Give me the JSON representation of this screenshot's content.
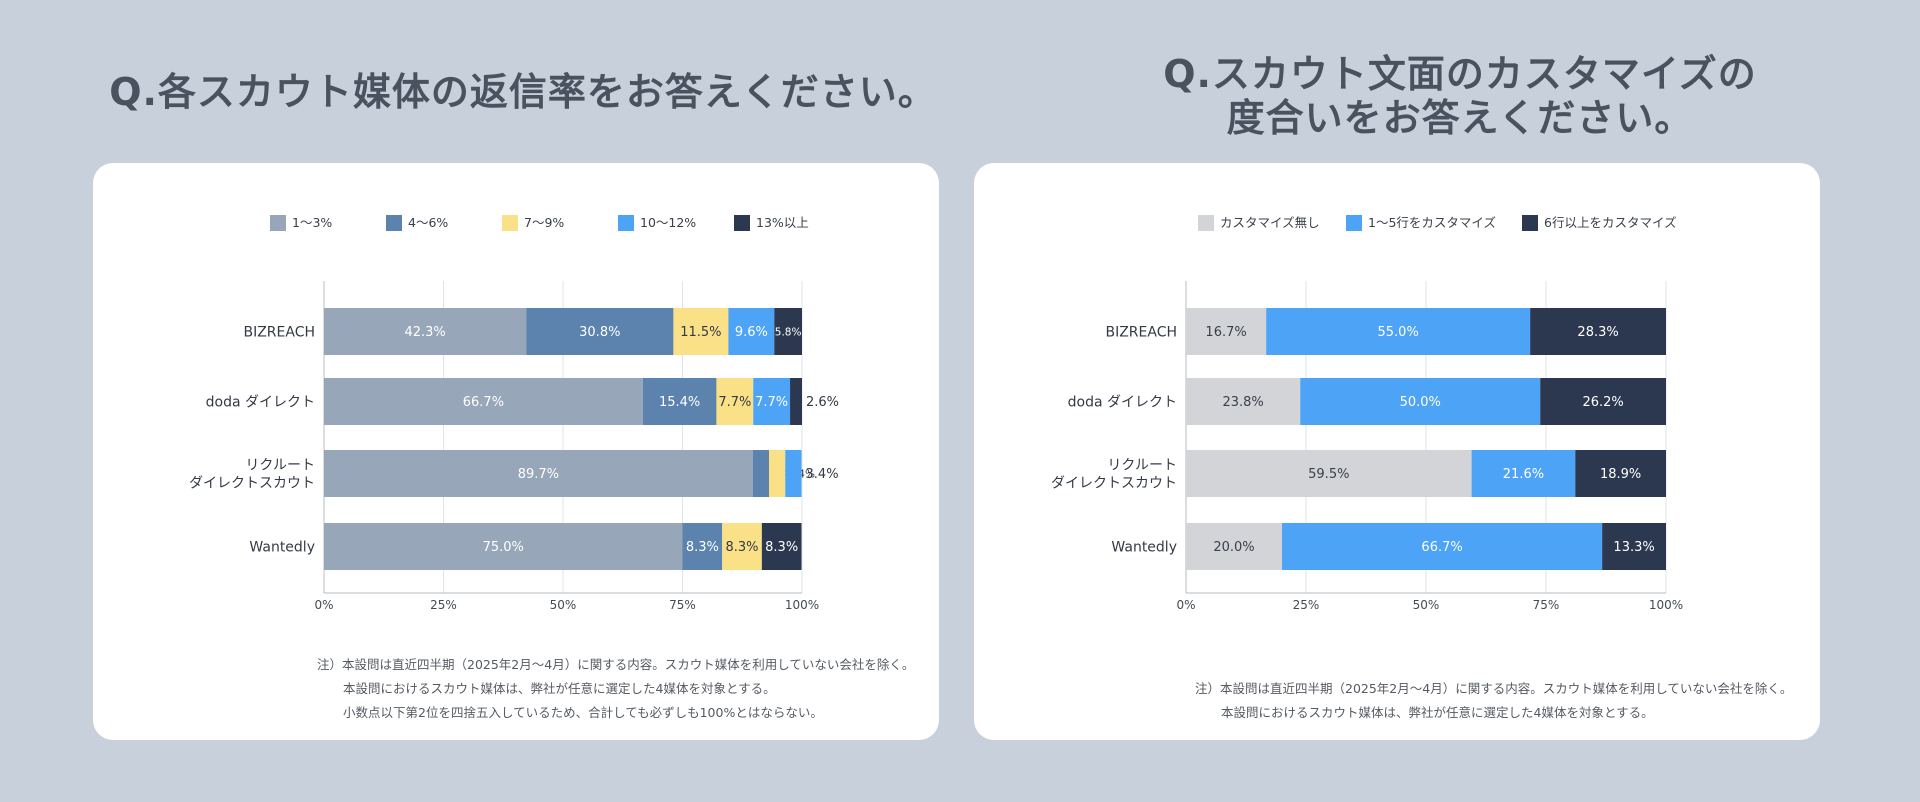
{
  "left": {
    "title": "Q.各スカウト媒体の返信率をお答えください。",
    "chart_data": {
      "type": "bar",
      "orientation": "horizontal",
      "stacked": true,
      "title": "Q.各スカウト媒体の返信率をお答えください。",
      "categories": [
        [
          "BIZREACH"
        ],
        [
          "doda ダイレクト"
        ],
        [
          "リクルート",
          "ダイレクトスカウト"
        ],
        [
          "Wantedly"
        ]
      ],
      "series": [
        {
          "name": "1〜3%",
          "color": "#97a6b8",
          "label_color": "#ffffff",
          "values": [
            42.3,
            66.7,
            89.7,
            75.0
          ]
        },
        {
          "name": "4〜6%",
          "color": "#5b83ae",
          "label_color": "#ffffff",
          "values": [
            30.8,
            15.4,
            3.4,
            8.3
          ]
        },
        {
          "name": "7〜9%",
          "color": "#fae187",
          "label_color": "#333a45",
          "values": [
            11.5,
            7.7,
            3.4,
            8.3
          ]
        },
        {
          "name": "10〜12%",
          "color": "#4da3f5",
          "label_color": "#ffffff",
          "values": [
            9.6,
            7.7,
            3.4,
            0
          ]
        },
        {
          "name": "13%以上",
          "color": "#2c3850",
          "label_color": "#ffffff",
          "values": [
            5.8,
            2.6,
            0,
            8.3
          ]
        }
      ],
      "value_labels": [
        [
          "42.3%",
          "30.8%",
          "11.5%",
          "9.6%",
          "5.8%"
        ],
        [
          "66.7%",
          "15.4%",
          "7.7%",
          "7.7%",
          "2.6%"
        ],
        [
          "89.7%",
          "3.4%",
          "3.4%",
          "3.4%",
          ""
        ],
        [
          "75.0%",
          "8.3%",
          "8.3%",
          "",
          "8.3%"
        ]
      ],
      "xlim": [
        0,
        100
      ],
      "x_ticks": [
        "0%",
        "25%",
        "50%",
        "75%",
        "100%"
      ],
      "legend": "top",
      "grid": true
    },
    "notes": [
      "注）本設問は直近四半期（2025年2月〜4月）に関する内容。スカウト媒体を利用していない会社を除く。",
      "本設問におけるスカウト媒体は、弊社が任意に選定した4媒体を対象とする。",
      "小数点以下第2位を四捨五入しているため、合計しても必ずしも100%とはならない。"
    ]
  },
  "right": {
    "title_lines": [
      "Q.スカウト文面のカスタマイズの",
      "度合いをお答えください。"
    ],
    "chart_data": {
      "type": "bar",
      "orientation": "horizontal",
      "stacked": true,
      "title": "Q.スカウト文面のカスタマイズの度合いをお答えください。",
      "categories": [
        [
          "BIZREACH"
        ],
        [
          "doda ダイレクト"
        ],
        [
          "リクルート",
          "ダイレクトスカウト"
        ],
        [
          "Wantedly"
        ]
      ],
      "series": [
        {
          "name": "カスタマイズ無し",
          "color": "#d3d4d7",
          "label_color": "#3a404a",
          "values": [
            16.7,
            23.8,
            59.5,
            20.0
          ]
        },
        {
          "name": "1〜5行をカスタマイズ",
          "color": "#4da3f5",
          "label_color": "#ffffff",
          "values": [
            55.0,
            50.0,
            21.6,
            66.7
          ]
        },
        {
          "name": "6行以上をカスタマイズ",
          "color": "#2c3850",
          "label_color": "#ffffff",
          "values": [
            28.3,
            26.2,
            18.9,
            13.3
          ]
        }
      ],
      "value_labels": [
        [
          "16.7%",
          "55.0%",
          "28.3%"
        ],
        [
          "23.8%",
          "50.0%",
          "26.2%"
        ],
        [
          "59.5%",
          "21.6%",
          "18.9%"
        ],
        [
          "20.0%",
          "66.7%",
          "13.3%"
        ]
      ],
      "xlim": [
        0,
        100
      ],
      "x_ticks": [
        "0%",
        "25%",
        "50%",
        "75%",
        "100%"
      ],
      "legend": "top",
      "grid": true
    },
    "notes": [
      "注）本設問は直近四半期（2025年2月〜4月）に関する内容。スカウト媒体を利用していない会社を除く。",
      "本設問におけるスカウト媒体は、弊社が任意に選定した4媒体を対象とする。"
    ]
  }
}
